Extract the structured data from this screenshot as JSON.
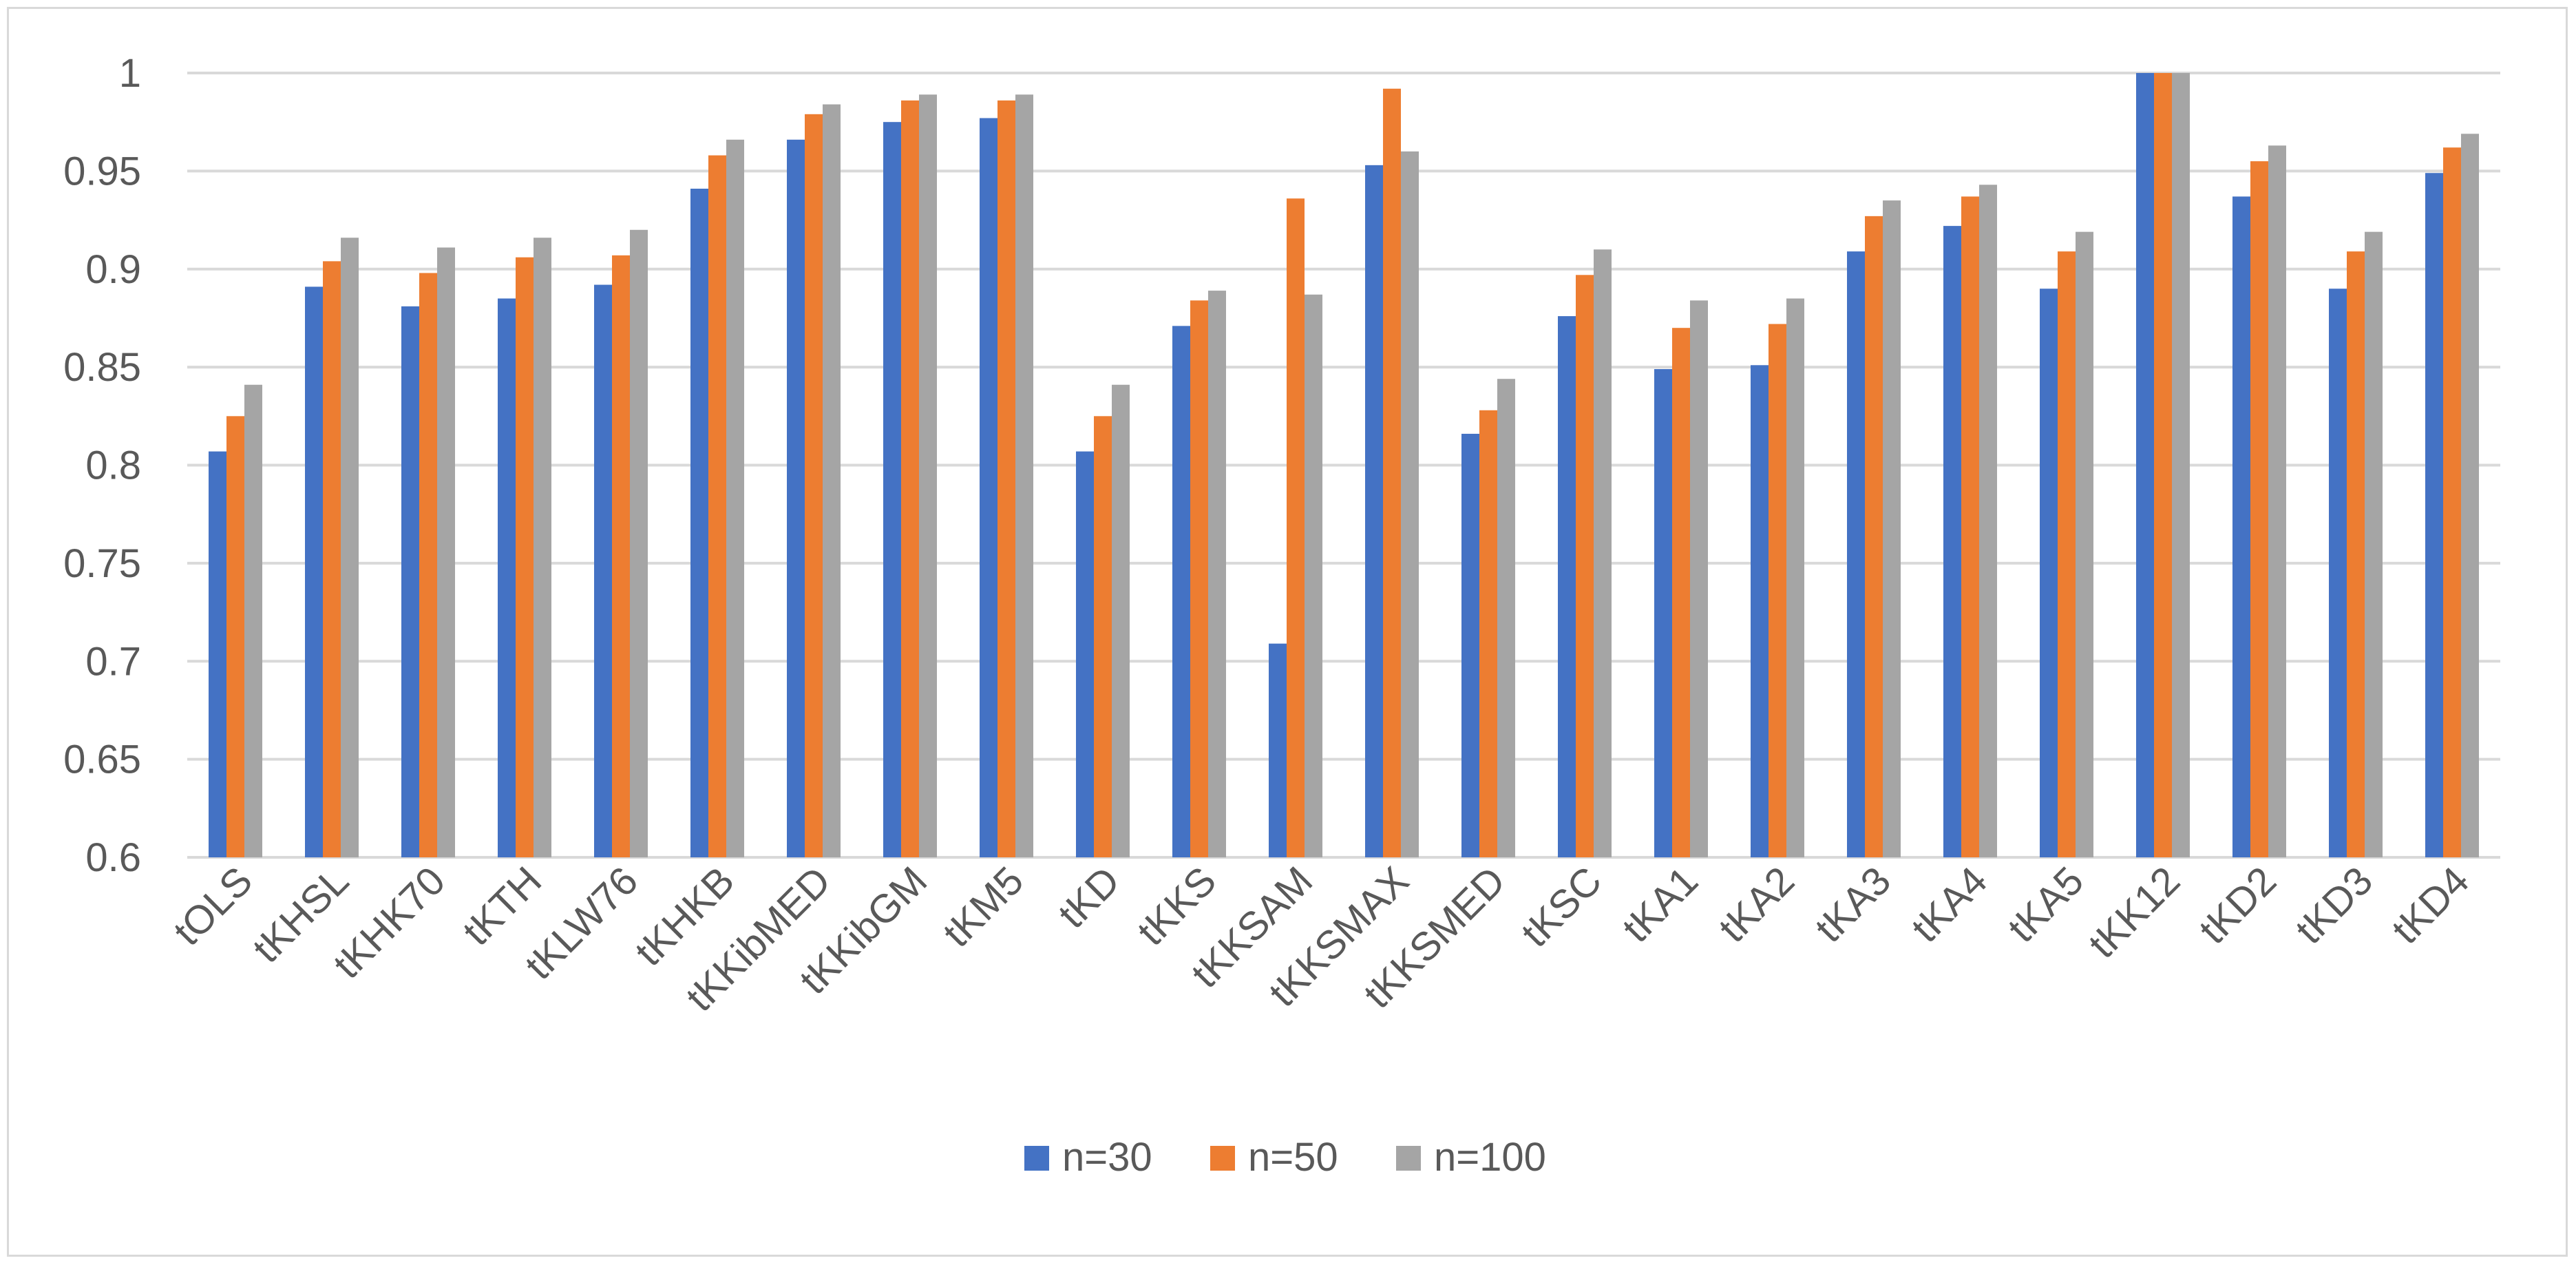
{
  "chart_data": {
    "type": "bar",
    "title": "",
    "xlabel": "",
    "ylabel": "",
    "ylim": [
      0.6,
      1.0
    ],
    "yticks": [
      0.6,
      0.65,
      0.7,
      0.75,
      0.8,
      0.85,
      0.9,
      0.95,
      1.0
    ],
    "ytick_labels": [
      "0.6",
      "0.65",
      "0.7",
      "0.75",
      "0.8",
      "0.85",
      "0.9",
      "0.95",
      "1"
    ],
    "grid": true,
    "legend_position": "bottom",
    "categories": [
      "tOLS",
      "tKHSL",
      "tKHK70",
      "tKTH",
      "tKLW76",
      "tKHKB",
      "tKKibMED",
      "tKKibGM",
      "tKM5",
      "tKD",
      "tKKS",
      "tKKSAM",
      "tKKSMAX",
      "tKKSMED",
      "tKSC",
      "tKA1",
      "tKA2",
      "tKA3",
      "tKA4",
      "tKA5",
      "tKK12",
      "tKD2",
      "tKD3",
      "tKD4"
    ],
    "series": [
      {
        "name": "n=30",
        "color": "#4472c4",
        "values": [
          0.807,
          0.891,
          0.881,
          0.885,
          0.892,
          0.941,
          0.966,
          0.975,
          0.977,
          0.807,
          0.871,
          0.709,
          0.953,
          0.816,
          0.876,
          0.849,
          0.851,
          0.909,
          0.922,
          0.89,
          1.0,
          0.937,
          0.89,
          0.949
        ]
      },
      {
        "name": "n=50",
        "color": "#ed7d31",
        "values": [
          0.825,
          0.904,
          0.898,
          0.906,
          0.907,
          0.958,
          0.979,
          0.986,
          0.986,
          0.825,
          0.884,
          0.936,
          0.992,
          0.828,
          0.897,
          0.87,
          0.872,
          0.927,
          0.937,
          0.909,
          1.0,
          0.955,
          0.909,
          0.962
        ]
      },
      {
        "name": "n=100",
        "color": "#a5a5a5",
        "values": [
          0.841,
          0.916,
          0.911,
          0.916,
          0.92,
          0.966,
          0.984,
          0.989,
          0.989,
          0.841,
          0.889,
          0.887,
          0.96,
          0.844,
          0.91,
          0.884,
          0.885,
          0.935,
          0.943,
          0.919,
          1.0,
          0.963,
          0.919,
          0.969
        ]
      }
    ]
  }
}
